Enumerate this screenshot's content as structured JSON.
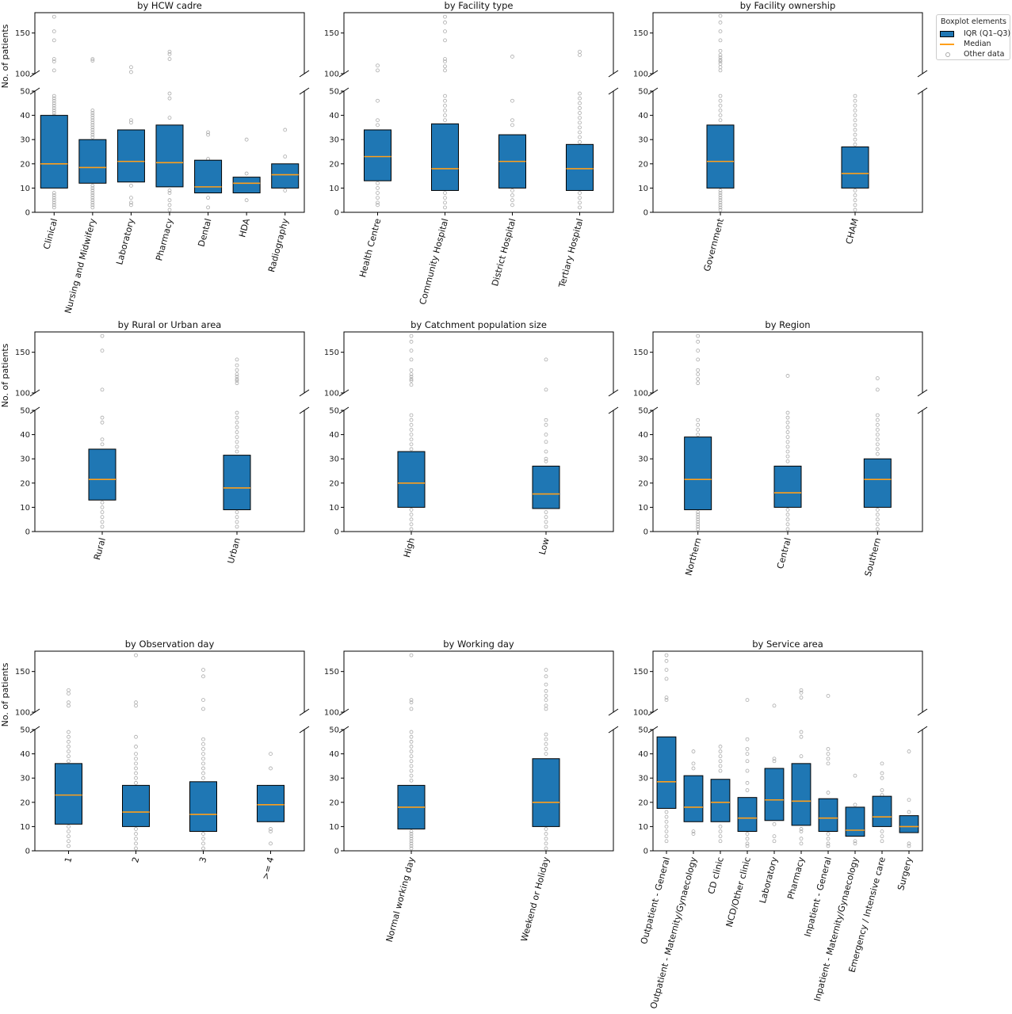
{
  "legend": {
    "title": "Boxplot elements",
    "items": [
      {
        "label": "IQR (Q1–Q3)",
        "kind": "box"
      },
      {
        "label": "Median",
        "kind": "line"
      },
      {
        "label": "Other data",
        "kind": "circle"
      }
    ]
  },
  "colors": {
    "box": "#1f77b4",
    "median": "#ff9f1a",
    "outlier": "#aaaaaa",
    "axis": "#000000"
  },
  "chart_data": [
    {
      "type": "box",
      "title": "by HCW cadre",
      "ylabel": "No. of patients",
      "ylim_lower": [
        0,
        50
      ],
      "ylim_upper": [
        100,
        175
      ],
      "yticks_lower": [
        0,
        10,
        20,
        30,
        40,
        50
      ],
      "yticks_upper": [
        100,
        150
      ],
      "categories": [
        "Clinical",
        "Nursing and Midwifery",
        "Laboratory",
        "Pharmacy",
        "Dental",
        "HDA",
        "Radiography"
      ],
      "boxes": [
        {
          "q1": 10,
          "median": 20,
          "q3": 40
        },
        {
          "q1": 12,
          "median": 18.5,
          "q3": 30
        },
        {
          "q1": 12.5,
          "median": 21,
          "q3": 34
        },
        {
          "q1": 10.5,
          "median": 20.5,
          "q3": 36
        },
        {
          "q1": 8,
          "median": 10.5,
          "q3": 21.5
        },
        {
          "q1": 8,
          "median": 12,
          "q3": 14.5
        },
        {
          "q1": 10,
          "median": 15.5,
          "q3": 20
        }
      ],
      "others": [
        [
          170,
          152,
          141,
          118,
          115,
          104,
          48,
          47,
          46,
          45,
          44,
          43,
          42,
          41,
          40,
          8,
          7,
          6,
          5,
          4,
          3,
          2
        ],
        [
          118,
          116,
          42,
          41,
          40,
          39,
          38,
          37,
          36,
          35,
          34,
          33,
          32,
          31,
          11,
          10,
          9,
          8,
          7,
          6,
          5,
          4,
          3,
          2
        ],
        [
          108,
          102,
          38,
          37,
          11,
          6,
          4,
          3
        ],
        [
          127,
          124,
          118,
          49,
          47,
          39,
          9,
          8,
          5,
          3,
          1
        ],
        [
          33,
          32,
          22,
          6,
          2
        ],
        [
          30,
          16,
          5
        ],
        [
          34,
          23,
          9
        ]
      ]
    },
    {
      "type": "box",
      "title": "by Facility type",
      "ylabel": "",
      "ylim_lower": [
        0,
        50
      ],
      "ylim_upper": [
        100,
        175
      ],
      "yticks_lower": [
        0,
        10,
        20,
        30,
        40,
        50
      ],
      "yticks_upper": [
        100,
        150
      ],
      "categories": [
        "Health Centre",
        "Community Hospital",
        "District Hospital",
        "Tertiary Hospital"
      ],
      "boxes": [
        {
          "q1": 13,
          "median": 23,
          "q3": 34
        },
        {
          "q1": 9,
          "median": 18,
          "q3": 36.5
        },
        {
          "q1": 10,
          "median": 21,
          "q3": 32
        },
        {
          "q1": 9,
          "median": 18,
          "q3": 28
        }
      ],
      "others": [
        [
          110,
          104,
          46,
          38,
          36,
          12,
          10,
          8,
          6,
          4,
          3
        ],
        [
          170,
          163,
          152,
          141,
          118,
          115,
          109,
          104,
          48,
          46,
          44,
          42,
          40,
          38,
          8,
          6,
          4,
          2
        ],
        [
          121,
          46,
          38,
          36,
          9,
          7,
          5,
          3
        ],
        [
          127,
          123,
          49,
          47,
          45,
          43,
          41,
          39,
          37,
          35,
          33,
          31,
          29,
          8,
          6,
          4,
          2
        ]
      ]
    },
    {
      "type": "box",
      "title": "by Facility ownership",
      "ylabel": "",
      "ylim_lower": [
        0,
        50
      ],
      "ylim_upper": [
        100,
        175
      ],
      "yticks_lower": [
        0,
        10,
        20,
        30,
        40,
        50
      ],
      "yticks_upper": [
        100,
        150
      ],
      "categories": [
        "Government",
        "CHAM"
      ],
      "boxes": [
        {
          "q1": 10,
          "median": 21,
          "q3": 36
        },
        {
          "q1": 10,
          "median": 16,
          "q3": 27
        }
      ],
      "others": [
        [
          171,
          163,
          152,
          141,
          128,
          123,
          120,
          117,
          115,
          112,
          108,
          104,
          48,
          46,
          44,
          42,
          40,
          38,
          9,
          8,
          7,
          6,
          5,
          4,
          3,
          2,
          1
        ],
        [
          48,
          46,
          44,
          42,
          40,
          38,
          36,
          34,
          32,
          30,
          28,
          9,
          7,
          5,
          3,
          1
        ]
      ]
    },
    {
      "type": "box",
      "title": "by Rural or Urban area",
      "ylabel": "No. of patients",
      "ylim_lower": [
        0,
        50
      ],
      "ylim_upper": [
        100,
        175
      ],
      "yticks_lower": [
        0,
        10,
        20,
        30,
        40,
        50
      ],
      "yticks_upper": [
        100,
        150
      ],
      "categories": [
        "Rural",
        "Urban"
      ],
      "boxes": [
        {
          "q1": 13,
          "median": 21.5,
          "q3": 34
        },
        {
          "q1": 9,
          "median": 18,
          "q3": 31.5
        }
      ],
      "others": [
        [
          170,
          152,
          104,
          47,
          45,
          38,
          36,
          12,
          10,
          8,
          6,
          4,
          2
        ],
        [
          141,
          134,
          128,
          123,
          120,
          117,
          115,
          112,
          49,
          47,
          45,
          43,
          41,
          39,
          37,
          35,
          33,
          8,
          6,
          4,
          2
        ]
      ]
    },
    {
      "type": "box",
      "title": "by Catchment population size",
      "ylabel": "",
      "ylim_lower": [
        0,
        50
      ],
      "ylim_upper": [
        100,
        175
      ],
      "yticks_lower": [
        0,
        10,
        20,
        30,
        40,
        50
      ],
      "yticks_upper": [
        100,
        150
      ],
      "categories": [
        "High",
        "Low"
      ],
      "boxes": [
        {
          "q1": 10,
          "median": 20,
          "q3": 33
        },
        {
          "q1": 9.5,
          "median": 15.5,
          "q3": 27
        }
      ],
      "others": [
        [
          170,
          163,
          152,
          141,
          128,
          123,
          120,
          117,
          115,
          110,
          48,
          46,
          44,
          42,
          40,
          38,
          36,
          34,
          9,
          7,
          5,
          3,
          1
        ],
        [
          141,
          104,
          46,
          44,
          40,
          37,
          33,
          30,
          29,
          8,
          6,
          4,
          2
        ]
      ]
    },
    {
      "type": "box",
      "title": "by Region",
      "ylabel": "",
      "ylim_lower": [
        0,
        50
      ],
      "ylim_upper": [
        100,
        175
      ],
      "yticks_lower": [
        0,
        10,
        20,
        30,
        40,
        50
      ],
      "yticks_upper": [
        100,
        150
      ],
      "categories": [
        "Northern",
        "Central",
        "Southern"
      ],
      "boxes": [
        {
          "q1": 9,
          "median": 21.5,
          "q3": 39
        },
        {
          "q1": 10,
          "median": 16,
          "q3": 27
        },
        {
          "q1": 10,
          "median": 21.5,
          "q3": 30
        }
      ],
      "others": [
        [
          170,
          163,
          152,
          141,
          128,
          123,
          117,
          112,
          46,
          44,
          42,
          40,
          8,
          7,
          6,
          5,
          4,
          3,
          2,
          1
        ],
        [
          121,
          49,
          47,
          45,
          43,
          41,
          39,
          37,
          35,
          33,
          31,
          29,
          9,
          7,
          5,
          3,
          1
        ],
        [
          118,
          104,
          48,
          46,
          44,
          42,
          40,
          38,
          36,
          34,
          32,
          9,
          7,
          5,
          3,
          1
        ]
      ]
    },
    {
      "type": "box",
      "title": "by Observation day",
      "ylabel": "No. of patients",
      "ylim_lower": [
        0,
        50
      ],
      "ylim_upper": [
        100,
        175
      ],
      "yticks_lower": [
        0,
        10,
        20,
        30,
        40,
        50
      ],
      "yticks_upper": [
        100,
        150
      ],
      "categories": [
        "1",
        "2",
        "3",
        ">= 4"
      ],
      "boxes": [
        {
          "q1": 11,
          "median": 23,
          "q3": 36
        },
        {
          "q1": 10,
          "median": 16,
          "q3": 27
        },
        {
          "q1": 8,
          "median": 15,
          "q3": 28.5
        },
        {
          "q1": 12,
          "median": 19,
          "q3": 27
        }
      ],
      "others": [
        [
          127,
          123,
          112,
          108,
          49,
          47,
          45,
          43,
          41,
          39,
          37,
          10,
          8,
          6,
          4,
          2
        ],
        [
          170,
          112,
          108,
          47,
          43,
          40,
          38,
          36,
          34,
          32,
          30,
          28,
          9,
          7,
          5,
          3,
          1
        ],
        [
          152,
          144,
          115,
          104,
          46,
          44,
          42,
          40,
          38,
          36,
          34,
          32,
          30,
          7,
          5,
          3,
          1
        ],
        [
          40,
          34,
          9,
          8,
          3
        ]
      ]
    },
    {
      "type": "box",
      "title": "by Working day",
      "ylabel": "",
      "ylim_lower": [
        0,
        50
      ],
      "ylim_upper": [
        100,
        175
      ],
      "yticks_lower": [
        0,
        10,
        20,
        30,
        40,
        50
      ],
      "yticks_upper": [
        100,
        150
      ],
      "categories": [
        "Normal working day",
        "Weekend or Holiday"
      ],
      "boxes": [
        {
          "q1": 9,
          "median": 18,
          "q3": 27
        },
        {
          "q1": 10,
          "median": 20,
          "q3": 38
        }
      ],
      "others": [
        [
          170,
          115,
          112,
          104,
          49,
          47,
          45,
          43,
          41,
          39,
          37,
          35,
          33,
          31,
          29,
          8,
          7,
          6,
          5,
          4,
          3,
          2,
          1
        ],
        [
          152,
          144,
          134,
          126,
          120,
          115,
          108,
          104,
          48,
          46,
          44,
          42,
          40,
          9,
          7,
          5,
          3,
          1
        ]
      ]
    },
    {
      "type": "box",
      "title": "by Service area",
      "ylabel": "",
      "ylim_lower": [
        0,
        50
      ],
      "ylim_upper": [
        100,
        175
      ],
      "yticks_lower": [
        0,
        10,
        20,
        30,
        40,
        50
      ],
      "yticks_upper": [
        100,
        150
      ],
      "categories": [
        "Outpatient - General",
        "Outpatient - Maternity/Gynaecology",
        "CD clinic",
        "NCD/Other clinic",
        "Laboratory",
        "Pharmacy",
        "Inpatient - General",
        "Inpatient - Maternity/Gynaecology",
        "Emergency / Intensive care",
        "Surgery"
      ],
      "boxes": [
        {
          "q1": 17.5,
          "median": 28.5,
          "q3": 47
        },
        {
          "q1": 12,
          "median": 18,
          "q3": 31
        },
        {
          "q1": 12,
          "median": 20,
          "q3": 29.5
        },
        {
          "q1": 8,
          "median": 13.5,
          "q3": 22
        },
        {
          "q1": 12.5,
          "median": 21,
          "q3": 34
        },
        {
          "q1": 10.5,
          "median": 20.5,
          "q3": 36
        },
        {
          "q1": 8,
          "median": 13.5,
          "q3": 21.5
        },
        {
          "q1": 6,
          "median": 8.5,
          "q3": 18
        },
        {
          "q1": 10,
          "median": 14,
          "q3": 22.5
        },
        {
          "q1": 7.5,
          "median": 10,
          "q3": 14.5
        }
      ],
      "others": [
        [
          170,
          163,
          152,
          141,
          118,
          115,
          16,
          14,
          12,
          10,
          8,
          6,
          4
        ],
        [
          41,
          36,
          34,
          8,
          7
        ],
        [
          43,
          41,
          39,
          37,
          35,
          33,
          10,
          8,
          6,
          4
        ],
        [
          115,
          46,
          42,
          40,
          37,
          33,
          28,
          25,
          7,
          5,
          3,
          2
        ],
        [
          108,
          38,
          37,
          11,
          6,
          4
        ],
        [
          127,
          124,
          118,
          49,
          47,
          39,
          9,
          8,
          5,
          3
        ],
        [
          120,
          42,
          40,
          38,
          36,
          24,
          7,
          5,
          3,
          2
        ],
        [
          31,
          19,
          4,
          3
        ],
        [
          36,
          32,
          30,
          25,
          23,
          8,
          6,
          4
        ],
        [
          41,
          21,
          16,
          3,
          2
        ]
      ]
    }
  ]
}
